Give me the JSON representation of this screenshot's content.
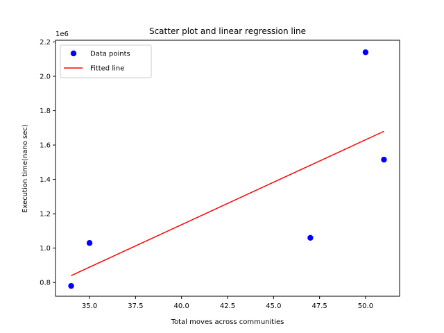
{
  "chart_data": {
    "type": "scatter",
    "title": "Scatter plot and linear regression line",
    "xlabel": "Total moves across communities",
    "ylabel": "Execution time(nano sec)",
    "y_offset_label": "1e6",
    "xlim": [
      33.15,
      51.85
    ],
    "ylim": [
      720000,
      2210000
    ],
    "xticks": [
      35.0,
      37.5,
      40.0,
      42.5,
      45.0,
      47.5,
      50.0
    ],
    "xtick_labels": [
      "35.0",
      "37.5",
      "40.0",
      "42.5",
      "45.0",
      "47.5",
      "50.0"
    ],
    "yticks": [
      800000,
      1000000,
      1200000,
      1400000,
      1600000,
      1800000,
      2000000,
      2200000
    ],
    "ytick_labels": [
      "0.8",
      "1.0",
      "1.2",
      "1.4",
      "1.6",
      "1.8",
      "2.0",
      "2.2"
    ],
    "grid": false,
    "legend_position": "top-left",
    "series": [
      {
        "name": "Data points",
        "kind": "scatter",
        "color": "#0000ff",
        "x": [
          34,
          35,
          47,
          50,
          51
        ],
        "y": [
          780000,
          1030000,
          1060000,
          2140000,
          1515000
        ]
      },
      {
        "name": "Fitted line",
        "kind": "line",
        "color": "#ff0000",
        "x": [
          34,
          51
        ],
        "y": [
          840000,
          1680000
        ]
      }
    ]
  }
}
